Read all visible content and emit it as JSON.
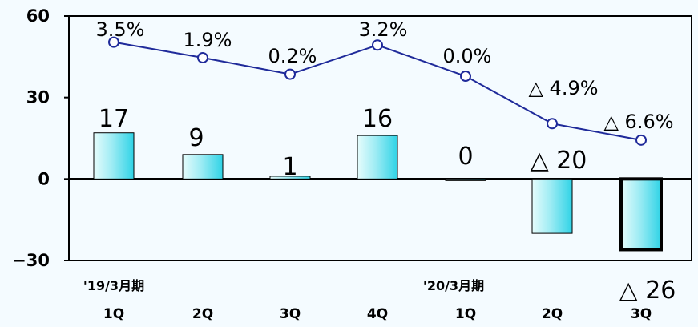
{
  "chart_data": {
    "type": "bar",
    "categories": [
      "1Q",
      "2Q",
      "3Q",
      "4Q",
      "1Q",
      "2Q",
      "3Q"
    ],
    "period_labels": [
      {
        "index": 0,
        "text": "'19/3月期"
      },
      {
        "index": 4,
        "text": "'20/3月期"
      }
    ],
    "ylim": [
      -30,
      60
    ],
    "yticks": [
      "60",
      "30",
      "0",
      "−30"
    ],
    "series": [
      {
        "type": "bar",
        "values": [
          17,
          9,
          1,
          16,
          0,
          -20,
          -26
        ],
        "labels": [
          "17",
          "9",
          "1",
          "16",
          "0",
          "△ 20",
          "△ 26"
        ]
      },
      {
        "type": "line",
        "values": [
          3.5,
          1.9,
          0.2,
          3.2,
          0.0,
          -4.9,
          -6.6
        ],
        "labels": [
          "3.5%",
          "1.9%",
          "0.2%",
          "3.2%",
          "0.0%",
          "△ 4.9%",
          "△ 6.6%"
        ]
      }
    ],
    "colors": {
      "bar_light": "#e6fcfc",
      "bar_dark": "#2fd3e6",
      "line": "#1f2a9a",
      "background": "#f4fbff"
    }
  }
}
